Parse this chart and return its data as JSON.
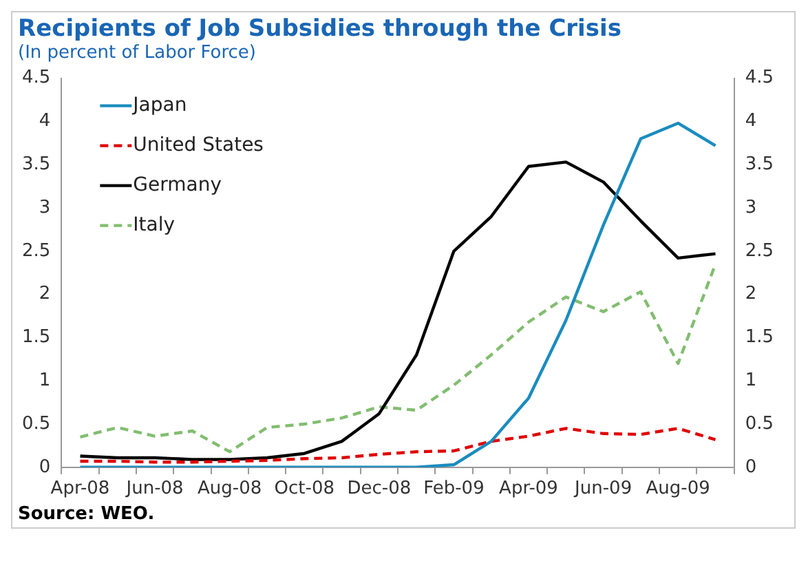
{
  "chart_data": {
    "type": "line",
    "title": "Recipients of Job Subsidies through the Crisis",
    "subtitle": "(In percent of Labor Force)",
    "categories": [
      "Apr-08",
      null,
      "Jun-08",
      null,
      "Aug-08",
      null,
      "Oct-08",
      null,
      "Dec-08",
      null,
      "Feb-09",
      null,
      "Apr-09",
      null,
      "Jun-09",
      null,
      "Aug-09",
      null
    ],
    "series": [
      {
        "name": "Japan",
        "color": "#1a8cbf",
        "line_style": "solid",
        "values": [
          0,
          0,
          0,
          0,
          0,
          0,
          0,
          0,
          0,
          0,
          0.03,
          0.3,
          0.8,
          1.7,
          2.8,
          3.8,
          3.98,
          3.72
        ]
      },
      {
        "name": "United States",
        "color": "#e00000",
        "line_style": "dashed",
        "values": [
          0.07,
          0.07,
          0.06,
          0.06,
          0.07,
          0.08,
          0.1,
          0.11,
          0.15,
          0.18,
          0.19,
          0.3,
          0.36,
          0.45,
          0.39,
          0.38,
          0.45,
          0.32
        ]
      },
      {
        "name": "Germany",
        "color": "#000000",
        "line_style": "solid",
        "values": [
          0.13,
          0.11,
          0.11,
          0.09,
          0.09,
          0.11,
          0.16,
          0.3,
          0.62,
          1.3,
          2.5,
          2.9,
          3.48,
          3.53,
          3.3,
          2.85,
          2.42,
          2.47
        ]
      },
      {
        "name": "Italy",
        "color": "#82bd70",
        "line_style": "dashed",
        "values": [
          0.35,
          0.46,
          0.36,
          0.42,
          0.18,
          0.46,
          0.5,
          0.57,
          0.7,
          0.66,
          0.95,
          1.3,
          1.68,
          1.97,
          1.8,
          2.03,
          1.2,
          2.35
        ]
      }
    ],
    "ylim": [
      0,
      4.5
    ],
    "yticks": [
      0,
      0.5,
      1,
      1.5,
      2,
      2.5,
      3,
      3.5,
      4,
      4.5
    ],
    "y2lim": [
      0,
      4.5
    ],
    "y2ticks": [
      0,
      0.5,
      1,
      1.5,
      2,
      2.5,
      3,
      3.5,
      4,
      4.5
    ],
    "grid": false,
    "legend": "top left",
    "marker": "none",
    "annotations": [
      "Source: WEO."
    ]
  }
}
